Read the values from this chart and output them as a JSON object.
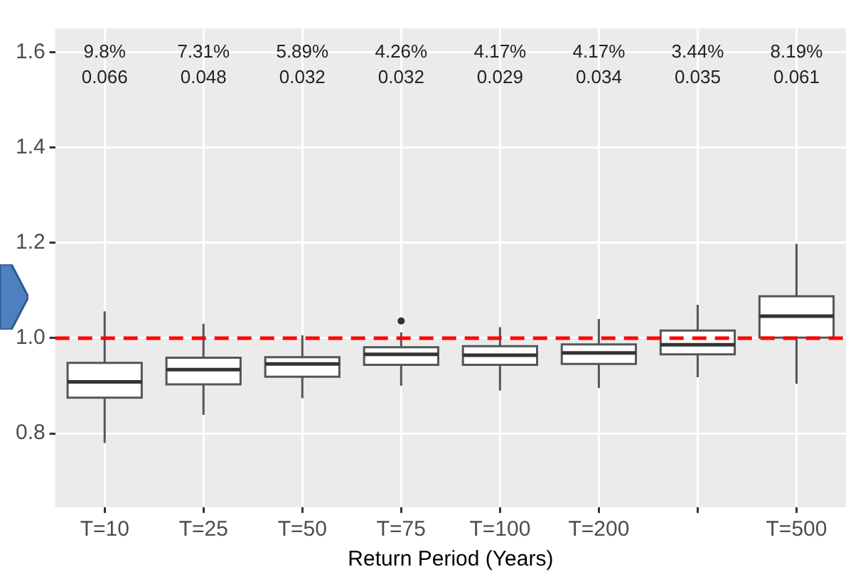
{
  "chart_data": {
    "type": "box",
    "xlabel": "Return Period (Years)",
    "categories": [
      "T=10",
      "T=25",
      "T=50",
      "T=75",
      "T=100",
      "T=200",
      null,
      "T=500"
    ],
    "boxes": [
      {
        "low": 0.78,
        "q1": 0.875,
        "median": 0.908,
        "q3": 0.948,
        "high": 1.056
      },
      {
        "low": 0.839,
        "q1": 0.903,
        "median": 0.934,
        "q3": 0.959,
        "high": 1.03
      },
      {
        "low": 0.874,
        "q1": 0.919,
        "median": 0.946,
        "q3": 0.96,
        "high": 1.006
      },
      {
        "low": 0.9,
        "q1": 0.944,
        "median": 0.966,
        "q3": 0.981,
        "high": 1.012,
        "outliers": [
          1.036
        ]
      },
      {
        "low": 0.89,
        "q1": 0.944,
        "median": 0.964,
        "q3": 0.983,
        "high": 1.023
      },
      {
        "low": 0.895,
        "q1": 0.946,
        "median": 0.969,
        "q3": 0.987,
        "high": 1.04
      },
      {
        "low": 0.918,
        "q1": 0.966,
        "median": 0.986,
        "q3": 1.016,
        "high": 1.07
      },
      {
        "low": 0.904,
        "q1": 1.001,
        "median": 1.046,
        "q3": 1.088,
        "high": 1.198
      }
    ],
    "color": "#ffffff",
    "ylim": [
      0.645,
      1.65
    ],
    "yticks": [
      0.8,
      {
        "value": 1,
        "label": "1.0"
      },
      1.2,
      1.4,
      1.6
    ],
    "grid": true,
    "ref_lines": [
      {
        "axis": "y",
        "value": 1,
        "color": "#ff0000",
        "line_style": "dashed"
      }
    ],
    "annotations": [
      "9.8%",
      "0.066",
      "7.31%",
      "0.048",
      "5.89%",
      "0.032",
      "4.26%",
      "0.032",
      "4.17%",
      "0.029",
      "4.17%",
      "0.034",
      "3.44%",
      "0.035",
      "8.19%",
      "0.061"
    ]
  }
}
